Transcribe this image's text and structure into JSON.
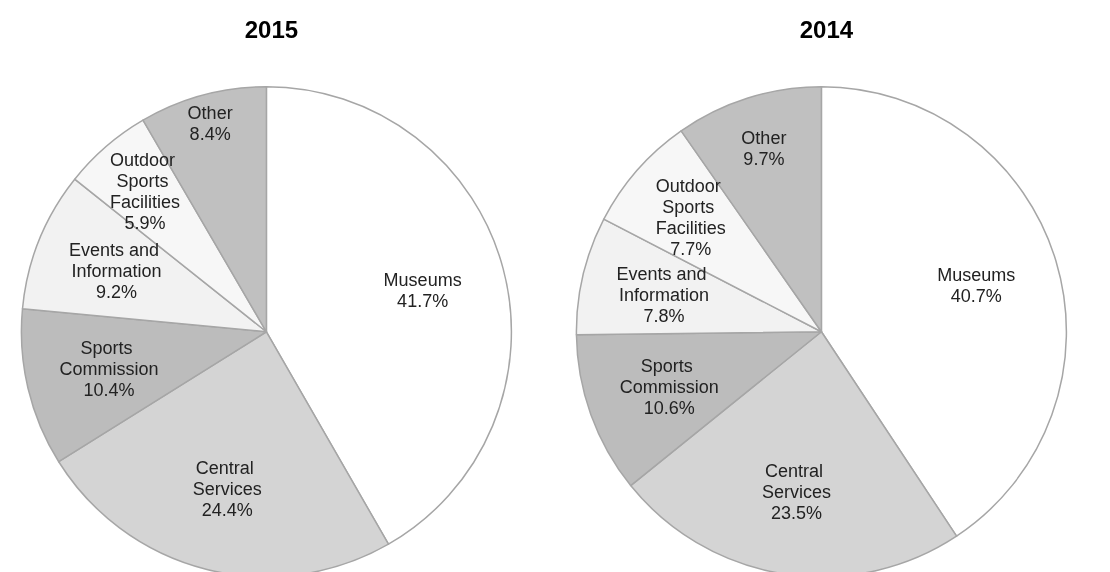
{
  "chart_data": [
    {
      "type": "pie",
      "title": "2015",
      "categories": [
        "Museums",
        "Central Services",
        "Sports Commission",
        "Events and Information",
        "Outdoor Sports Facilities",
        "Other"
      ],
      "values": [
        41.7,
        24.4,
        10.4,
        9.2,
        5.9,
        8.4
      ],
      "value_labels": [
        "41.7%",
        "24.4%",
        "10.4%",
        "9.2%",
        "5.9%",
        "8.4%"
      ],
      "colors": [
        "#ffffff",
        "#d4d4d4",
        "#bcbcbc",
        "#f2f2f2",
        "#f7f7f7",
        "#c0c0c0"
      ],
      "legend": false
    },
    {
      "type": "pie",
      "title": "2014",
      "categories": [
        "Museums",
        "Central Services",
        "Sports Commission",
        "Events and Information",
        "Outdoor Sports Facilities",
        "Other"
      ],
      "values": [
        40.7,
        23.5,
        10.6,
        7.8,
        7.7,
        9.7
      ],
      "value_labels": [
        "40.7%",
        "23.5%",
        "10.6%",
        "7.8%",
        "7.7%",
        "9.7%"
      ],
      "colors": [
        "#ffffff",
        "#d4d4d4",
        "#bcbcbc",
        "#f2f2f2",
        "#f7f7f7",
        "#c0c0c0"
      ],
      "legend": false
    }
  ]
}
